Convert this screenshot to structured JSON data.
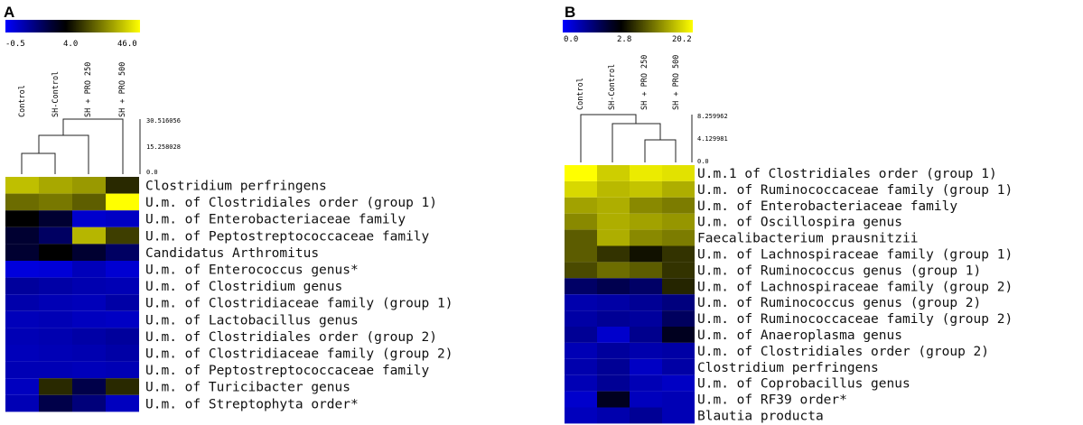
{
  "chart_data": [
    {
      "type": "heatmap",
      "panel": "A",
      "color_scale": {
        "min_label": "-0.5",
        "mid_label": "4.0",
        "max_label": "46.0",
        "colors": [
          "#0000ff",
          "#000000",
          "#ffff00"
        ]
      },
      "columns": [
        "Control",
        "SH-Control",
        "SH + PRO 250",
        "SH + PRO 500"
      ],
      "dendrogram_ticks": [
        "30.516056",
        "15.258028",
        "0.0"
      ],
      "rows": [
        "Clostridium perfringens",
        "U.m. of Clostridiales order (group 1)",
        "U.m. of Enterobacteriaceae family",
        "U.m. of Peptostreptococcaceae family",
        "Candidatus Arthromitus",
        "U.m. of Enterococcus genus*",
        "U.m. of Clostridium genus",
        "U.m. of Clostridiaceae family (group 1)",
        "U.m. of Lactobacillus genus",
        "U.m. of Clostridiales order (group 2)",
        "U.m. of Clostridiaceae family (group 2)",
        "U.m. of Peptostreptococcaceae family",
        "U.m. of Turicibacter genus",
        "U.m. of Streptophyta order*"
      ],
      "values": [
        [
          30,
          25,
          22,
          6
        ],
        [
          14,
          16,
          12,
          46
        ],
        [
          4,
          3,
          -0.2,
          0
        ],
        [
          3,
          2,
          28,
          8
        ],
        [
          3,
          4,
          3,
          2
        ],
        [
          -0.5,
          -0.4,
          0.2,
          -0.3
        ],
        [
          0.8,
          0.6,
          0.4,
          0.3
        ],
        [
          0.5,
          0.3,
          0.2,
          0.6
        ],
        [
          0.2,
          0.3,
          0.1,
          0.0
        ],
        [
          0.3,
          0.4,
          0.6,
          0.8
        ],
        [
          0.2,
          0.3,
          0.4,
          0.6
        ],
        [
          0.3,
          0.3,
          0.2,
          0.3
        ],
        [
          0.1,
          6,
          2.5,
          6
        ],
        [
          0.3,
          2.5,
          1.5,
          0.1
        ]
      ]
    },
    {
      "type": "heatmap",
      "panel": "B",
      "color_scale": {
        "min_label": "0.0",
        "mid_label": "2.8",
        "max_label": "20.2",
        "colors": [
          "#0000ff",
          "#000000",
          "#ffff00"
        ]
      },
      "columns": [
        "Control",
        "SH-Control",
        "SH + PRO 250",
        "SH + PRO 500"
      ],
      "dendrogram_ticks": [
        "8.259962",
        "4.129981",
        "0.0"
      ],
      "rows": [
        "U.m.1 of Clostridiales order (group 1)",
        "U.m. of Ruminococcaceae family (group 1)",
        "U.m. of Enterobacteriaceae family",
        "U.m. of Oscillospira genus",
        "Faecalibacterium prausnitzii",
        "U.m. of Lachnospiraceae family (group 1)",
        "U.m. of Ruminococcus genus (group 1)",
        "U.m. of Lachnospiraceae family (group 2)",
        "U.m. of Ruminococcus genus (group 2)",
        "U.m. of Ruminococcaceae family (group 2)",
        "U.m. of Anaeroplasma genus",
        "U.m. of Clostridiales order (group 2)",
        "Clostridium perfringens",
        "U.m. of Coprobacillus genus",
        "U.m. of RF39 order*",
        "Blautia producta"
      ],
      "values": [
        [
          20.2,
          15,
          18,
          17
        ],
        [
          16,
          13,
          14,
          12
        ],
        [
          11,
          12,
          9,
          8
        ],
        [
          9,
          12,
          11,
          10
        ],
        [
          6,
          12,
          9,
          8
        ],
        [
          6,
          4,
          3,
          4
        ],
        [
          5,
          7,
          6,
          4
        ],
        [
          1.5,
          1.8,
          1.5,
          3.5
        ],
        [
          0.6,
          0.7,
          0.9,
          1.2
        ],
        [
          0.7,
          0.9,
          0.8,
          1.6
        ],
        [
          0.9,
          0.2,
          1.0,
          2.4
        ],
        [
          0.5,
          0.8,
          0.6,
          0.7
        ],
        [
          0.6,
          0.9,
          0.3,
          0.7
        ],
        [
          0.5,
          0.9,
          0.5,
          0.3
        ],
        [
          0.2,
          2.4,
          0.4,
          0.5
        ],
        [
          0.4,
          0.6,
          0.9,
          0.5
        ]
      ]
    }
  ]
}
